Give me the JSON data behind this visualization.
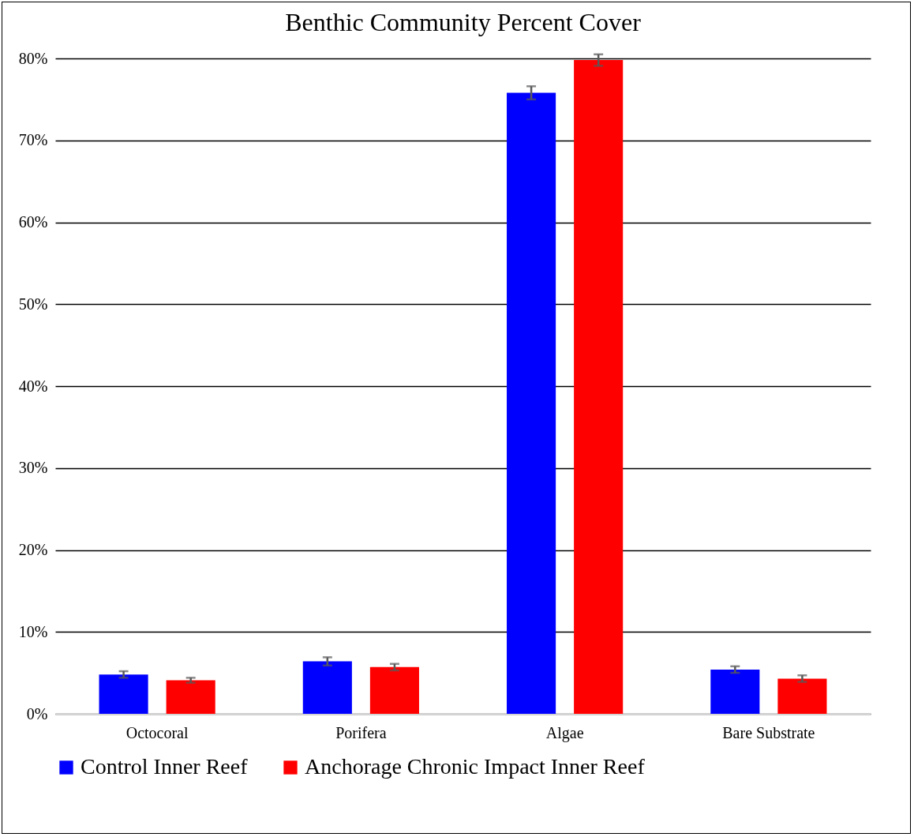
{
  "chart_data": {
    "type": "bar",
    "title": "Benthic Community Percent Cover",
    "categories": [
      "Octocoral",
      "Porifera",
      "Algae",
      "Bare Substrate"
    ],
    "series": [
      {
        "name": "Control Inner Reef",
        "color": "#0000ff",
        "values": [
          4.8,
          6.4,
          75.8,
          5.4
        ],
        "errors": [
          0.4,
          0.5,
          0.8,
          0.4
        ]
      },
      {
        "name": "Anchorage Chronic Impact Inner Reef",
        "color": "#ff0000",
        "values": [
          4.1,
          5.7,
          79.8,
          4.3
        ],
        "errors": [
          0.3,
          0.4,
          0.7,
          0.4
        ]
      }
    ],
    "ylim": [
      0,
      80
    ],
    "yticks": [
      {
        "value": 0,
        "label": "0%"
      },
      {
        "value": 10,
        "label": "10%"
      },
      {
        "value": 20,
        "label": "20%"
      },
      {
        "value": 30,
        "label": "30%"
      },
      {
        "value": 40,
        "label": "40%"
      },
      {
        "value": 50,
        "label": "50%"
      },
      {
        "value": 60,
        "label": "60%"
      },
      {
        "value": 70,
        "label": "70%"
      },
      {
        "value": 80,
        "label": "80%"
      }
    ],
    "grid": "y",
    "legend": "bottom"
  }
}
